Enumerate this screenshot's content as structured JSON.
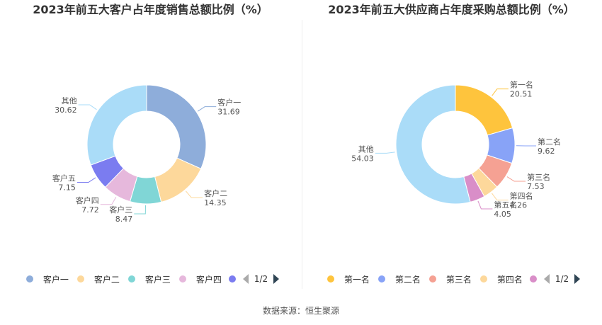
{
  "chart_data": [
    {
      "type": "pie",
      "donut": true,
      "title": "2023年前五大客户占年度销售总额比例（%）",
      "categories": [
        "客户一",
        "客户二",
        "客户三",
        "客户四",
        "客户五",
        "其他"
      ],
      "values": [
        31.69,
        14.35,
        8.47,
        7.72,
        7.15,
        30.62
      ],
      "colors": [
        "#8eadda",
        "#fdd89b",
        "#80d6d6",
        "#e6b8dc",
        "#7b7cf0",
        "#aadcf8"
      ],
      "legend": {
        "position": "bottom",
        "items": [
          "客户一",
          "客户二",
          "客户三",
          "客户四"
        ],
        "page": "1/2"
      }
    },
    {
      "type": "pie",
      "donut": true,
      "title": "2023年前五大供应商占年度采购总额比例（%）",
      "categories": [
        "第一名",
        "第二名",
        "第三名",
        "第四名",
        "第五名",
        "其他"
      ],
      "values": [
        20.51,
        9.62,
        7.53,
        4.26,
        4.05,
        54.03
      ],
      "colors": [
        "#fec43d",
        "#88a3f7",
        "#f5a193",
        "#fdd89b",
        "#d98ec8",
        "#aadcf8"
      ],
      "legend": {
        "position": "bottom",
        "items": [
          "第一名",
          "第二名",
          "第三名",
          "第四名"
        ],
        "page": "1/2"
      }
    }
  ],
  "footer": {
    "source": "数据来源：恒生聚源"
  }
}
